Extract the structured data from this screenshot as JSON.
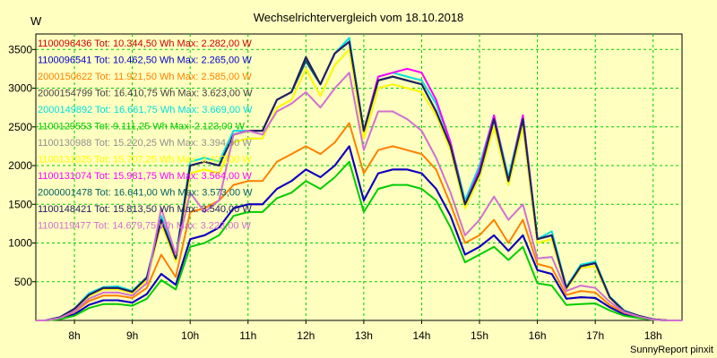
{
  "chart_data": {
    "type": "line",
    "title": "Wechselrichtervergleich vom 18.10.2018",
    "ylabel": "W",
    "xlabel": "",
    "footer": "SunnyReport pinxit",
    "ylim": [
      0,
      3700
    ],
    "y_ticks": [
      500,
      1000,
      1500,
      2000,
      2500,
      3000,
      3500
    ],
    "x_ticks": [
      "8h",
      "9h",
      "10h",
      "11h",
      "12h",
      "13h",
      "14h",
      "15h",
      "16h",
      "17h",
      "18h"
    ],
    "x_tick_values": [
      8,
      9,
      10,
      11,
      12,
      13,
      14,
      15,
      16,
      17,
      18
    ],
    "xlim": [
      7.333,
      18.5
    ],
    "grid": true,
    "legend_position": "top-left",
    "x": [
      7.333,
      7.5,
      7.75,
      8.0,
      8.25,
      8.5,
      8.75,
      9.0,
      9.25,
      9.5,
      9.75,
      10.0,
      10.25,
      10.5,
      10.75,
      11.0,
      11.25,
      11.5,
      11.75,
      12.0,
      12.25,
      12.5,
      12.75,
      13.0,
      13.25,
      13.5,
      13.75,
      14.0,
      14.25,
      14.5,
      14.75,
      15.0,
      15.25,
      15.5,
      15.75,
      16.0,
      16.25,
      16.5,
      16.75,
      17.0,
      17.25,
      17.5,
      17.75,
      18.0,
      18.25,
      18.5
    ],
    "series": [
      {
        "name": "1100096436 Tot: 10.344,50 Wh Max: 2.282,00 W",
        "color": "#cc0000",
        "values": [
          0,
          0,
          20,
          80,
          200,
          260,
          260,
          230,
          340,
          600,
          460,
          1050,
          1100,
          1200,
          1450,
          1500,
          1500,
          1700,
          1800,
          1950,
          1850,
          2000,
          2250,
          1550,
          1900,
          1950,
          1950,
          1900,
          1700,
          1350,
          850,
          950,
          1100,
          900,
          1100,
          650,
          600,
          280,
          300,
          290,
          170,
          80,
          40,
          10,
          0,
          0
        ]
      },
      {
        "name": "1100096541 Tot: 10.462,50 Wh Max: 2.265,00 W",
        "color": "#0000cc",
        "values": [
          0,
          0,
          20,
          80,
          200,
          260,
          260,
          230,
          340,
          600,
          460,
          1050,
          1100,
          1200,
          1450,
          1500,
          1500,
          1700,
          1800,
          1950,
          1850,
          2000,
          2250,
          1550,
          1900,
          1950,
          1950,
          1900,
          1700,
          1350,
          850,
          950,
          1100,
          900,
          1100,
          650,
          600,
          280,
          300,
          290,
          170,
          80,
          40,
          10,
          0,
          0
        ]
      },
      {
        "name": "2000150622 Tot: 11.921,50 Wh Max: 2.585,00 W",
        "color": "#ff8000",
        "values": [
          0,
          0,
          30,
          110,
          250,
          320,
          320,
          290,
          420,
          850,
          560,
          1400,
          1450,
          1550,
          1750,
          1800,
          1800,
          2050,
          2150,
          2250,
          2150,
          2300,
          2550,
          1900,
          2200,
          2250,
          2200,
          2150,
          1950,
          1500,
          1000,
          1100,
          1300,
          1000,
          1300,
          730,
          680,
          330,
          380,
          360,
          200,
          100,
          50,
          10,
          0,
          0
        ]
      },
      {
        "name": "2000154799 Tot: 16.410,75 Wh Max: 3.623,00 W",
        "color": "#404040",
        "values": [
          0,
          0,
          40,
          150,
          330,
          420,
          420,
          370,
          550,
          1300,
          800,
          2000,
          2050,
          2000,
          2400,
          2450,
          2450,
          2850,
          2950,
          3400,
          3050,
          3450,
          3600,
          2450,
          3100,
          3150,
          3100,
          3050,
          2700,
          2250,
          1500,
          1900,
          2600,
          1800,
          2600,
          1050,
          1100,
          420,
          700,
          740,
          300,
          120,
          60,
          15,
          0,
          0
        ]
      },
      {
        "name": "2000149892 Tot: 16.661,75 Wh Max: 3.669,00 W",
        "color": "#00e0e0",
        "values": [
          0,
          0,
          40,
          150,
          350,
          430,
          440,
          380,
          560,
          1350,
          820,
          2050,
          2100,
          2050,
          2450,
          2450,
          2450,
          2850,
          2950,
          3350,
          3050,
          3450,
          3650,
          2450,
          3150,
          3200,
          3150,
          3100,
          2800,
          2300,
          1550,
          2000,
          2650,
          1850,
          2650,
          1050,
          1150,
          430,
          720,
          760,
          310,
          130,
          60,
          15,
          0,
          0
        ]
      },
      {
        "name": "1100129553 Tot: 9.111,25 Wh Max: 2.123,00 W",
        "color": "#00cc00",
        "values": [
          0,
          0,
          15,
          60,
          160,
          210,
          210,
          190,
          280,
          520,
          400,
          950,
          1000,
          1100,
          1350,
          1400,
          1400,
          1580,
          1650,
          1800,
          1700,
          1850,
          2050,
          1400,
          1700,
          1750,
          1750,
          1700,
          1550,
          1200,
          750,
          850,
          950,
          780,
          950,
          480,
          450,
          200,
          210,
          220,
          130,
          60,
          30,
          8,
          0,
          0
        ]
      },
      {
        "name": "1100130988 Tot: 15.220,25 Wh Max: 3.394,00 W",
        "color": "#909090",
        "values": [
          0,
          0,
          35,
          140,
          310,
          400,
          400,
          350,
          520,
          1250,
          760,
          1900,
          1950,
          1900,
          2300,
          2350,
          2350,
          2750,
          2850,
          3250,
          2900,
          3300,
          3500,
          2350,
          3000,
          3050,
          3000,
          2950,
          2650,
          2200,
          1450,
          1850,
          2500,
          1750,
          2500,
          1000,
          1050,
          400,
          680,
          700,
          290,
          115,
          55,
          15,
          0,
          0
        ]
      },
      {
        "name": "1100131025 Tot: 15.707,25 Wh Max: 3.407,00 W",
        "color": "#ffff00",
        "values": [
          0,
          0,
          35,
          140,
          310,
          400,
          400,
          350,
          520,
          1250,
          760,
          1900,
          1950,
          1900,
          2300,
          2350,
          2350,
          2750,
          2850,
          3250,
          2900,
          3300,
          3500,
          2350,
          3000,
          3050,
          3000,
          2950,
          2650,
          2200,
          1450,
          1850,
          2500,
          1750,
          2500,
          1000,
          1050,
          400,
          680,
          700,
          290,
          115,
          55,
          15,
          0,
          0
        ]
      },
      {
        "name": "1100131074 Tot: 15.981,75 Wh Max: 3.564,00 W",
        "color": "#ff00ff",
        "values": [
          0,
          0,
          40,
          150,
          330,
          420,
          420,
          370,
          550,
          1300,
          800,
          2000,
          2050,
          2000,
          2400,
          2450,
          2450,
          2850,
          2950,
          3350,
          3050,
          3450,
          3600,
          2450,
          3150,
          3200,
          3250,
          3200,
          2850,
          2300,
          1500,
          1950,
          2650,
          1800,
          2650,
          1050,
          1100,
          420,
          700,
          740,
          300,
          120,
          60,
          15,
          0,
          0
        ]
      },
      {
        "name": "2000001478 Tot: 16.641,00 Wh Max: 3.573,00 W",
        "color": "#006060",
        "values": [
          0,
          0,
          40,
          150,
          330,
          420,
          420,
          370,
          550,
          1300,
          800,
          2000,
          2050,
          2000,
          2400,
          2450,
          2450,
          2850,
          2950,
          3350,
          3050,
          3450,
          3600,
          2450,
          3100,
          3150,
          3100,
          3050,
          2700,
          2250,
          1500,
          1900,
          2600,
          1800,
          2600,
          1050,
          1100,
          420,
          700,
          740,
          300,
          120,
          60,
          15,
          0,
          0
        ]
      },
      {
        "name": "1100148421 Tot: 15.813,50 Wh Max: 3.540,00 W",
        "color": "#202060",
        "values": [
          0,
          0,
          40,
          150,
          330,
          420,
          420,
          370,
          550,
          1300,
          800,
          2000,
          2050,
          2000,
          2400,
          2450,
          2450,
          2850,
          2950,
          3400,
          3050,
          3450,
          3600,
          2450,
          3100,
          3150,
          3100,
          3050,
          2700,
          2250,
          1500,
          1900,
          2600,
          1800,
          2600,
          1050,
          1100,
          420,
          700,
          740,
          300,
          120,
          60,
          15,
          0,
          0
        ]
      },
      {
        "name": "1100119477 Tot: 14.679,75 Wh Max: 3.223,00 W",
        "color": "#d070d0",
        "values": [
          0,
          0,
          30,
          120,
          280,
          360,
          360,
          320,
          480,
          1450,
          850,
          1650,
          1400,
          1550,
          2400,
          2450,
          2400,
          2700,
          2800,
          2950,
          2750,
          3000,
          3200,
          2200,
          2700,
          2700,
          2600,
          2450,
          2100,
          1650,
          1100,
          1300,
          1600,
          1300,
          1500,
          800,
          820,
          380,
          450,
          420,
          240,
          110,
          50,
          10,
          0,
          0
        ]
      }
    ]
  }
}
